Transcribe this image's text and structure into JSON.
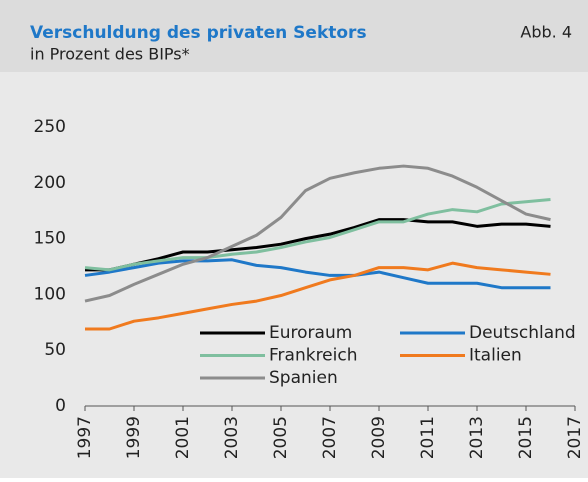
{
  "chart_data": {
    "type": "line",
    "title": "Verschuldung des privaten Sektors",
    "subtitle": "in Prozent des BIPs*",
    "figure_label": "Abb. 4",
    "x": [
      1997,
      1998,
      1999,
      2000,
      2001,
      2002,
      2003,
      2004,
      2005,
      2006,
      2007,
      2008,
      2009,
      2010,
      2011,
      2012,
      2013,
      2014,
      2015,
      2016
    ],
    "series": [
      {
        "name": "Euroraum",
        "color": "#000000",
        "values": [
          122,
          122,
          127,
          132,
          138,
          138,
          140,
          142,
          145,
          150,
          154,
          160,
          167,
          167,
          165,
          165,
          161,
          163,
          163,
          161
        ]
      },
      {
        "name": "Deutschland",
        "color": "#1f78c8",
        "values": [
          117,
          120,
          124,
          128,
          130,
          130,
          131,
          126,
          124,
          120,
          117,
          117,
          120,
          115,
          110,
          110,
          110,
          106,
          106,
          106
        ]
      },
      {
        "name": "Frankreich",
        "color": "#7fbf9f",
        "values": [
          124,
          122,
          127,
          130,
          133,
          133,
          136,
          138,
          142,
          147,
          151,
          158,
          165,
          165,
          172,
          176,
          174,
          181,
          183,
          185
        ]
      },
      {
        "name": "Italien",
        "color": "#f07a1e",
        "values": [
          69,
          69,
          76,
          79,
          83,
          87,
          91,
          94,
          99,
          106,
          113,
          117,
          124,
          124,
          122,
          128,
          124,
          122,
          120,
          118
        ]
      },
      {
        "name": "Spanien",
        "color": "#8c8c8c",
        "values": [
          94,
          99,
          109,
          118,
          127,
          133,
          143,
          153,
          169,
          193,
          204,
          209,
          213,
          215,
          213,
          206,
          196,
          184,
          172,
          167
        ]
      }
    ],
    "xlim": [
      1997,
      2017
    ],
    "xticks": [
      1997,
      1999,
      2001,
      2003,
      2005,
      2007,
      2009,
      2011,
      2013,
      2015,
      2017
    ],
    "ylim": [
      0,
      250
    ],
    "yticks": [
      0,
      50,
      100,
      150,
      200,
      250
    ]
  }
}
